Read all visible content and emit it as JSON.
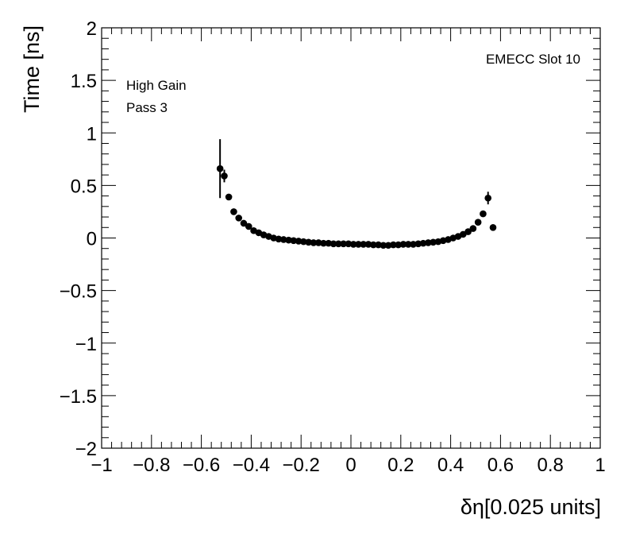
{
  "chart_data": {
    "type": "scatter",
    "title": "",
    "xlabel": "δη[0.025 units]",
    "ylabel": "Time [ns]",
    "xlim": [
      -1,
      1
    ],
    "ylim": [
      -2,
      2
    ],
    "x_major_ticks": [
      -1,
      -0.8,
      -0.6,
      -0.4,
      -0.2,
      0,
      0.2,
      0.4,
      0.6,
      0.8,
      1
    ],
    "y_major_ticks": [
      -2,
      -1.5,
      -1,
      -0.5,
      0,
      0.5,
      1,
      1.5,
      2
    ],
    "x_tick_labels": [
      "−1",
      "−0.8",
      "−0.6",
      "−0.4",
      "−0.2",
      "0",
      "0.2",
      "0.4",
      "0.6",
      "0.8",
      "1"
    ],
    "y_tick_labels": [
      "−2",
      "−1.5",
      "−1",
      "−0.5",
      "0",
      "0.5",
      "1",
      "1.5",
      "2"
    ],
    "annotations": {
      "slot_label": "EMECC Slot 10",
      "gain_label": "High Gain",
      "pass_label": "Pass 3"
    },
    "series": [
      {
        "name": "EMECC Slot 10",
        "marker_color": "#000000",
        "points": [
          {
            "x": -0.525,
            "y": 0.66,
            "err": 0.28
          },
          {
            "x": -0.508,
            "y": 0.59,
            "err": 0.06
          },
          {
            "x": -0.49,
            "y": 0.39,
            "err": 0.02
          },
          {
            "x": -0.47,
            "y": 0.25,
            "err": 0
          },
          {
            "x": -0.45,
            "y": 0.19,
            "err": 0
          },
          {
            "x": -0.43,
            "y": 0.14,
            "err": 0
          },
          {
            "x": -0.41,
            "y": 0.11,
            "err": 0
          },
          {
            "x": -0.39,
            "y": 0.07,
            "err": 0
          },
          {
            "x": -0.37,
            "y": 0.05,
            "err": 0
          },
          {
            "x": -0.35,
            "y": 0.03,
            "err": 0
          },
          {
            "x": -0.33,
            "y": 0.015,
            "err": 0
          },
          {
            "x": -0.31,
            "y": 0.0,
            "err": 0
          },
          {
            "x": -0.29,
            "y": -0.01,
            "err": 0
          },
          {
            "x": -0.27,
            "y": -0.015,
            "err": 0
          },
          {
            "x": -0.25,
            "y": -0.02,
            "err": 0
          },
          {
            "x": -0.23,
            "y": -0.025,
            "err": 0
          },
          {
            "x": -0.21,
            "y": -0.03,
            "err": 0
          },
          {
            "x": -0.19,
            "y": -0.035,
            "err": 0
          },
          {
            "x": -0.17,
            "y": -0.04,
            "err": 0
          },
          {
            "x": -0.15,
            "y": -0.045,
            "err": 0
          },
          {
            "x": -0.13,
            "y": -0.045,
            "err": 0
          },
          {
            "x": -0.11,
            "y": -0.05,
            "err": 0
          },
          {
            "x": -0.09,
            "y": -0.05,
            "err": 0
          },
          {
            "x": -0.07,
            "y": -0.055,
            "err": 0
          },
          {
            "x": -0.05,
            "y": -0.055,
            "err": 0
          },
          {
            "x": -0.03,
            "y": -0.055,
            "err": 0
          },
          {
            "x": -0.01,
            "y": -0.055,
            "err": 0
          },
          {
            "x": 0.01,
            "y": -0.06,
            "err": 0
          },
          {
            "x": 0.03,
            "y": -0.06,
            "err": 0
          },
          {
            "x": 0.05,
            "y": -0.06,
            "err": 0
          },
          {
            "x": 0.07,
            "y": -0.06,
            "err": 0
          },
          {
            "x": 0.09,
            "y": -0.065,
            "err": 0
          },
          {
            "x": 0.11,
            "y": -0.065,
            "err": 0
          },
          {
            "x": 0.13,
            "y": -0.07,
            "err": 0
          },
          {
            "x": 0.15,
            "y": -0.07,
            "err": 0
          },
          {
            "x": 0.17,
            "y": -0.065,
            "err": 0
          },
          {
            "x": 0.19,
            "y": -0.065,
            "err": 0
          },
          {
            "x": 0.21,
            "y": -0.06,
            "err": 0
          },
          {
            "x": 0.23,
            "y": -0.06,
            "err": 0
          },
          {
            "x": 0.25,
            "y": -0.06,
            "err": 0
          },
          {
            "x": 0.27,
            "y": -0.055,
            "err": 0
          },
          {
            "x": 0.29,
            "y": -0.05,
            "err": 0
          },
          {
            "x": 0.31,
            "y": -0.045,
            "err": 0
          },
          {
            "x": 0.33,
            "y": -0.04,
            "err": 0
          },
          {
            "x": 0.35,
            "y": -0.035,
            "err": 0
          },
          {
            "x": 0.37,
            "y": -0.025,
            "err": 0
          },
          {
            "x": 0.39,
            "y": -0.015,
            "err": 0
          },
          {
            "x": 0.41,
            "y": 0.0,
            "err": 0
          },
          {
            "x": 0.43,
            "y": 0.015,
            "err": 0
          },
          {
            "x": 0.45,
            "y": 0.035,
            "err": 0
          },
          {
            "x": 0.47,
            "y": 0.06,
            "err": 0
          },
          {
            "x": 0.49,
            "y": 0.09,
            "err": 0
          },
          {
            "x": 0.51,
            "y": 0.15,
            "err": 0
          },
          {
            "x": 0.53,
            "y": 0.23,
            "err": 0
          },
          {
            "x": 0.55,
            "y": 0.38,
            "err": 0.06
          },
          {
            "x": 0.57,
            "y": 0.1,
            "err": 0
          }
        ]
      }
    ]
  }
}
